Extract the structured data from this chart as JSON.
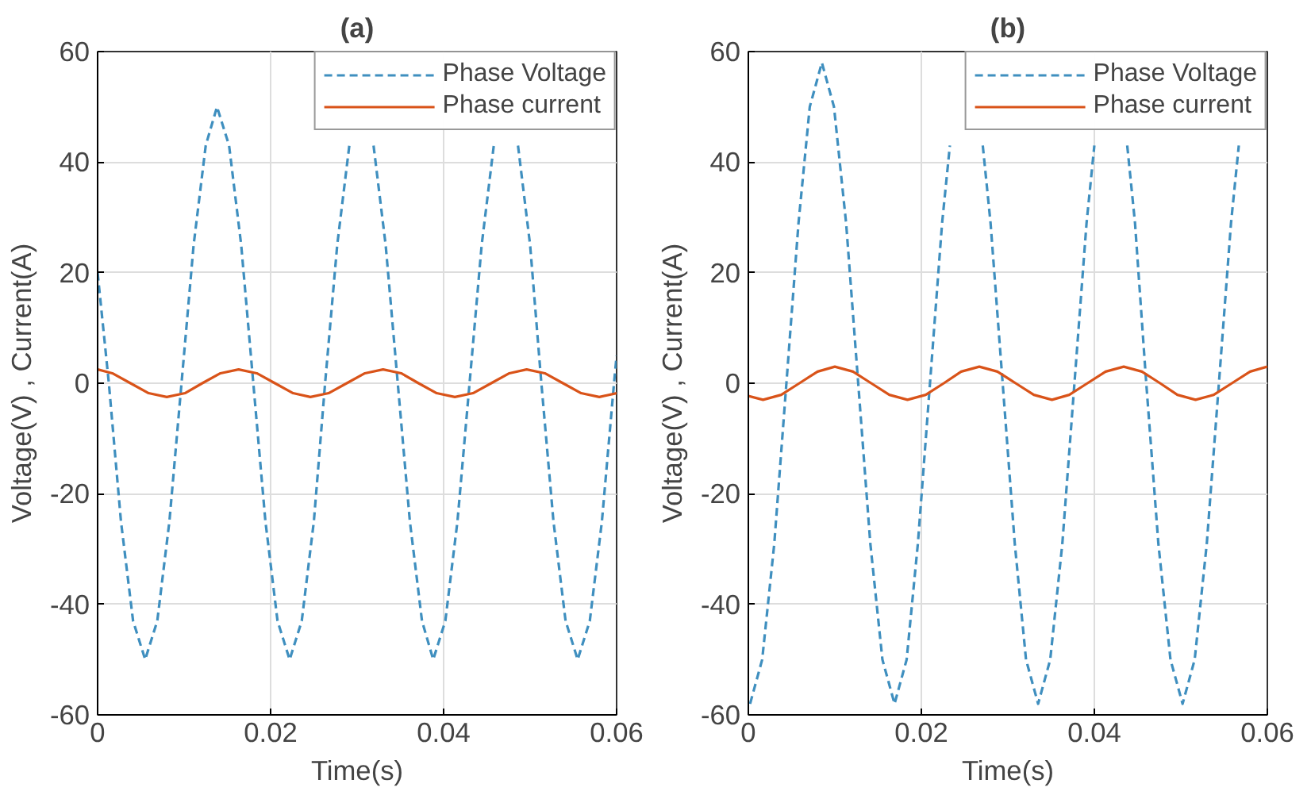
{
  "chart_data": [
    {
      "type": "line",
      "title": "(a)",
      "xlabel": "Time(s)",
      "ylabel": "Voltage(V) , Current(A)",
      "xlim": [
        0,
        0.06
      ],
      "ylim": [
        -60,
        60
      ],
      "xticks": [
        0,
        0.02,
        0.04,
        0.06
      ],
      "yticks": [
        -60,
        -40,
        -20,
        0,
        20,
        40,
        60
      ],
      "grid": true,
      "legend": "top right",
      "series": [
        {
          "name": "Phase Voltage",
          "color": "#3f8fbf",
          "line_style": "dashed",
          "x": [
            0,
            0.0013,
            0.0027,
            0.0041,
            0.0055,
            0.0069,
            0.0083,
            0.0097,
            0.0111,
            0.0125,
            0.0138,
            0.0152,
            0.0166,
            0.018,
            0.0194,
            0.0208,
            0.0222,
            0.0236,
            0.025,
            0.0263,
            0.0277,
            0.0291,
            0.0305,
            0.0319,
            0.0333,
            0.0347,
            0.0361,
            0.0375,
            0.0388,
            0.0402,
            0.0416,
            0.043,
            0.0444,
            0.0458,
            0.0472,
            0.0486,
            0.05,
            0.0513,
            0.0527,
            0.0541,
            0.0555,
            0.0569,
            0.0583,
            0.0597,
            0.06
          ],
          "values": [
            20,
            0,
            -25,
            -43,
            -50,
            -43,
            -25,
            0,
            25,
            43,
            50,
            43,
            25,
            0,
            -25,
            -43,
            -50,
            -43,
            -25,
            0,
            25,
            43,
            null,
            43,
            25,
            0,
            -25,
            -43,
            -50,
            -43,
            -25,
            0,
            25,
            43,
            null,
            43,
            25,
            0,
            -25,
            -43,
            -50,
            -43,
            -25,
            0,
            5
          ]
        },
        {
          "name": "Phase current",
          "color": "#d95319",
          "line_style": "solid",
          "x": [
            0,
            0.0017,
            0.0038,
            0.0059,
            0.008,
            0.0101,
            0.0121,
            0.0142,
            0.0163,
            0.0184,
            0.0205,
            0.0226,
            0.0246,
            0.0267,
            0.0288,
            0.0309,
            0.033,
            0.0351,
            0.0371,
            0.0392,
            0.0413,
            0.0434,
            0.0455,
            0.0476,
            0.0496,
            0.0517,
            0.0538,
            0.0559,
            0.058,
            0.06
          ],
          "values": [
            2.5,
            1.8,
            0,
            -1.8,
            -2.5,
            -1.8,
            0,
            1.8,
            2.5,
            1.8,
            0,
            -1.8,
            -2.5,
            -1.8,
            0,
            1.8,
            2.5,
            1.8,
            0,
            -1.8,
            -2.5,
            -1.8,
            0,
            1.8,
            2.5,
            1.8,
            0,
            -1.8,
            -2.5,
            -1.8
          ]
        }
      ]
    },
    {
      "type": "line",
      "title": "(b)",
      "xlabel": "Time(s)",
      "ylabel": "Voltage(V) , Current(A)",
      "xlim": [
        0,
        0.06
      ],
      "ylim": [
        -60,
        60
      ],
      "xticks": [
        0,
        0.02,
        0.04,
        0.06
      ],
      "yticks": [
        -60,
        -40,
        -20,
        0,
        20,
        40,
        60
      ],
      "grid": true,
      "legend": "top right",
      "series": [
        {
          "name": "Phase Voltage",
          "color": "#3f8fbf",
          "line_style": "dashed",
          "x": [
            0.0002,
            0.0016,
            0.003,
            0.0044,
            0.0058,
            0.0071,
            0.0085,
            0.0099,
            0.0113,
            0.0127,
            0.0141,
            0.0155,
            0.0169,
            0.0183,
            0.0196,
            0.021,
            0.0224,
            0.0233,
            0.0252,
            0.0271,
            0.028,
            0.0294,
            0.0308,
            0.0321,
            0.0335,
            0.0349,
            0.0363,
            0.0377,
            0.0391,
            0.04,
            0.0419,
            0.0438,
            0.0447,
            0.046,
            0.0474,
            0.0488,
            0.0502,
            0.0516,
            0.053,
            0.0544,
            0.0558,
            0.0567
          ],
          "values": [
            -58,
            -50,
            -29,
            0,
            29,
            50,
            58,
            50,
            29,
            0,
            -29,
            -50,
            -58,
            -50,
            -29,
            0,
            29,
            43,
            null,
            43,
            29,
            0,
            -29,
            -50,
            -58,
            -50,
            -29,
            0,
            29,
            43,
            null,
            43,
            29,
            0,
            -29,
            -50,
            -58,
            -50,
            -29,
            0,
            29,
            43
          ]
        },
        {
          "name": "Phase current",
          "color": "#d95319",
          "line_style": "solid",
          "x": [
            0,
            0.0017,
            0.0038,
            0.0059,
            0.008,
            0.01,
            0.0121,
            0.0142,
            0.0163,
            0.0184,
            0.0205,
            0.0226,
            0.0246,
            0.0267,
            0.0288,
            0.0309,
            0.033,
            0.0351,
            0.0371,
            0.0392,
            0.0413,
            0.0434,
            0.0455,
            0.0476,
            0.0496,
            0.0517,
            0.0538,
            0.0559,
            0.058,
            0.06
          ],
          "values": [
            -2.3,
            -3,
            -2.1,
            0,
            2.1,
            3,
            2.1,
            0,
            -2.1,
            -3,
            -2.1,
            0,
            2.1,
            3,
            2.1,
            0,
            -2.1,
            -3,
            -2.1,
            0,
            2.1,
            3,
            2.1,
            0,
            -2.1,
            -3,
            -2.1,
            0,
            2.1,
            3
          ]
        }
      ]
    }
  ]
}
